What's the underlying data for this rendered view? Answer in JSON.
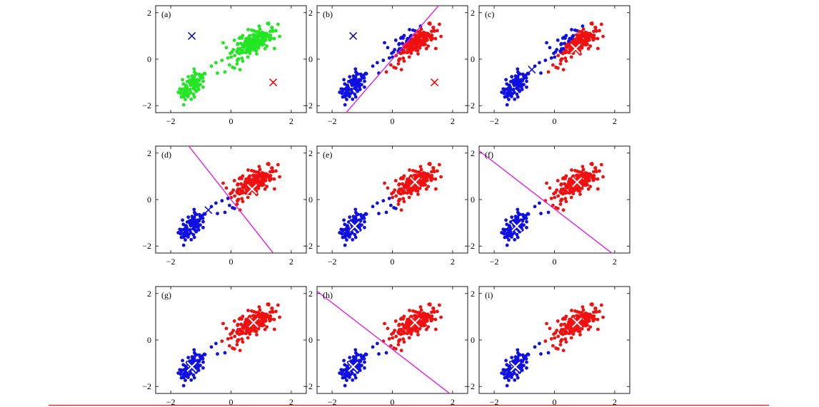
{
  "figure": {
    "colors": {
      "cluster_unassigned": "#22e622",
      "cluster_1": "#1010e0",
      "cluster_2": "#f01010",
      "boundary": "#e020e0",
      "rule": "#d21a1a"
    }
  },
  "chart_data": [
    {
      "id": "a",
      "type": "scatter",
      "label": "(a)",
      "xlim": [
        -2.5,
        2.5
      ],
      "ylim": [
        -2.3,
        2.3
      ],
      "xticks": [
        "−2",
        "0",
        "2"
      ],
      "yticks": [
        "−2",
        "0",
        "2"
      ],
      "assignment": "none",
      "centroids": [
        {
          "x": -1.3,
          "y": 1.0,
          "color": "#1010e0",
          "style": "cross"
        },
        {
          "x": 1.4,
          "y": -1.0,
          "color": "#f01010",
          "style": "cross"
        }
      ],
      "boundary": null
    },
    {
      "id": "b",
      "type": "scatter",
      "label": "(b)",
      "xlim": [
        -2.5,
        2.5
      ],
      "ylim": [
        -2.3,
        2.3
      ],
      "xticks": [
        "−2",
        "0",
        "2"
      ],
      "yticks": [
        "−2",
        "0",
        "2"
      ],
      "assignment": "line",
      "assign_line": [
        [
          -1.8,
          -2.7
        ],
        [
          1.8,
          2.7
        ]
      ],
      "centroids": [
        {
          "x": -1.3,
          "y": 1.0,
          "color": "#1010e0",
          "style": "cross"
        },
        {
          "x": 1.4,
          "y": -1.0,
          "color": "#f01010",
          "style": "cross"
        }
      ],
      "boundary": [
        [
          -1.8,
          -2.7
        ],
        [
          1.8,
          2.7
        ]
      ]
    },
    {
      "id": "c",
      "type": "scatter",
      "label": "(c)",
      "xlim": [
        -2.5,
        2.5
      ],
      "ylim": [
        -2.3,
        2.3
      ],
      "xticks": [
        "−2",
        "0",
        "2"
      ],
      "yticks": [
        "−2",
        "0",
        "2"
      ],
      "assignment": "line",
      "assign_line": [
        [
          -1.8,
          -2.7
        ],
        [
          1.8,
          2.7
        ]
      ],
      "centroids": [
        {
          "x": -0.75,
          "y": -0.45,
          "color": "#1010e0",
          "style": "cross"
        },
        {
          "x": 0.7,
          "y": 0.45,
          "color": "#f01010",
          "style": "bigcross"
        }
      ],
      "boundary": null
    },
    {
      "id": "d",
      "type": "scatter",
      "label": "(d)",
      "xlim": [
        -2.5,
        2.5
      ],
      "ylim": [
        -2.3,
        2.3
      ],
      "xticks": [
        "−2",
        "0",
        "2"
      ],
      "yticks": [
        "−2",
        "0",
        "2"
      ],
      "assignment": "line",
      "assign_line": [
        [
          -1.4,
          2.3
        ],
        [
          1.4,
          -2.3
        ]
      ],
      "centroids": [
        {
          "x": -0.75,
          "y": -0.45,
          "color": "#1010e0",
          "style": "cross"
        },
        {
          "x": 0.7,
          "y": 0.45,
          "color": "#f01010",
          "style": "bigcross"
        }
      ],
      "boundary": [
        [
          -1.4,
          2.3
        ],
        [
          1.4,
          -2.3
        ]
      ]
    },
    {
      "id": "e",
      "type": "scatter",
      "label": "(e)",
      "xlim": [
        -2.5,
        2.5
      ],
      "ylim": [
        -2.3,
        2.3
      ],
      "xticks": [
        "−2",
        "0",
        "2"
      ],
      "yticks": [
        "−2",
        "0",
        "2"
      ],
      "assignment": "line",
      "assign_line": [
        [
          -1.4,
          2.3
        ],
        [
          1.4,
          -2.3
        ]
      ],
      "centroids": [
        {
          "x": -1.25,
          "y": -1.15,
          "color": "#1010e0",
          "style": "bigcross"
        },
        {
          "x": 0.75,
          "y": 0.75,
          "color": "#f01010",
          "style": "bigcross"
        }
      ],
      "boundary": null
    },
    {
      "id": "f",
      "type": "scatter",
      "label": "(f)",
      "xlim": [
        -2.5,
        2.5
      ],
      "ylim": [
        -2.3,
        2.3
      ],
      "xticks": [
        "−2",
        "0",
        "2"
      ],
      "yticks": [
        "−2",
        "0",
        "2"
      ],
      "assignment": "line",
      "assign_line": [
        [
          -2.5,
          2.1
        ],
        [
          2.0,
          -2.4
        ]
      ],
      "centroids": [
        {
          "x": -1.25,
          "y": -1.15,
          "color": "#1010e0",
          "style": "bigcross"
        },
        {
          "x": 0.75,
          "y": 0.75,
          "color": "#f01010",
          "style": "bigcross"
        }
      ],
      "boundary": [
        [
          -2.5,
          2.1
        ],
        [
          2.0,
          -2.4
        ]
      ]
    },
    {
      "id": "g",
      "type": "scatter",
      "label": "(g)",
      "xlim": [
        -2.5,
        2.5
      ],
      "ylim": [
        -2.3,
        2.3
      ],
      "xticks": [
        "−2",
        "0",
        "2"
      ],
      "yticks": [
        "−2",
        "0",
        "2"
      ],
      "assignment": "line",
      "assign_line": [
        [
          -2.5,
          2.1
        ],
        [
          2.0,
          -2.4
        ]
      ],
      "centroids": [
        {
          "x": -1.3,
          "y": -1.15,
          "color": "#1010e0",
          "style": "bigcross"
        },
        {
          "x": 0.75,
          "y": 0.75,
          "color": "#f01010",
          "style": "bigcross"
        }
      ],
      "boundary": null
    },
    {
      "id": "h",
      "type": "scatter",
      "label": "(h)",
      "xlim": [
        -2.5,
        2.5
      ],
      "ylim": [
        -2.3,
        2.3
      ],
      "xticks": [
        "−2",
        "0",
        "2"
      ],
      "yticks": [
        "−2",
        "0",
        "2"
      ],
      "assignment": "line",
      "assign_line": [
        [
          -2.5,
          2.1
        ],
        [
          2.0,
          -2.4
        ]
      ],
      "centroids": [
        {
          "x": -1.3,
          "y": -1.15,
          "color": "#1010e0",
          "style": "bigcross"
        },
        {
          "x": 0.75,
          "y": 0.75,
          "color": "#f01010",
          "style": "bigcross"
        }
      ],
      "boundary": [
        [
          -2.5,
          2.1
        ],
        [
          2.0,
          -2.4
        ]
      ]
    },
    {
      "id": "i",
      "type": "scatter",
      "label": "(i)",
      "xlim": [
        -2.5,
        2.5
      ],
      "ylim": [
        -2.3,
        2.3
      ],
      "xticks": [
        "−2",
        "0",
        "2"
      ],
      "yticks": [
        "−2",
        "0",
        "2"
      ],
      "assignment": "line",
      "assign_line": [
        [
          -2.5,
          2.1
        ],
        [
          2.0,
          -2.4
        ]
      ],
      "centroids": [
        {
          "x": -1.3,
          "y": -1.15,
          "color": "#1010e0",
          "style": "bigcross"
        },
        {
          "x": 0.75,
          "y": 0.75,
          "color": "#f01010",
          "style": "bigcross"
        }
      ],
      "boundary": null
    }
  ],
  "points": {
    "note_free": true,
    "cluster_1_center": [
      -1.3,
      -1.15
    ],
    "cluster_2_center": [
      0.75,
      0.75
    ],
    "cluster_1_count": 90,
    "cluster_2_count": 200
  }
}
